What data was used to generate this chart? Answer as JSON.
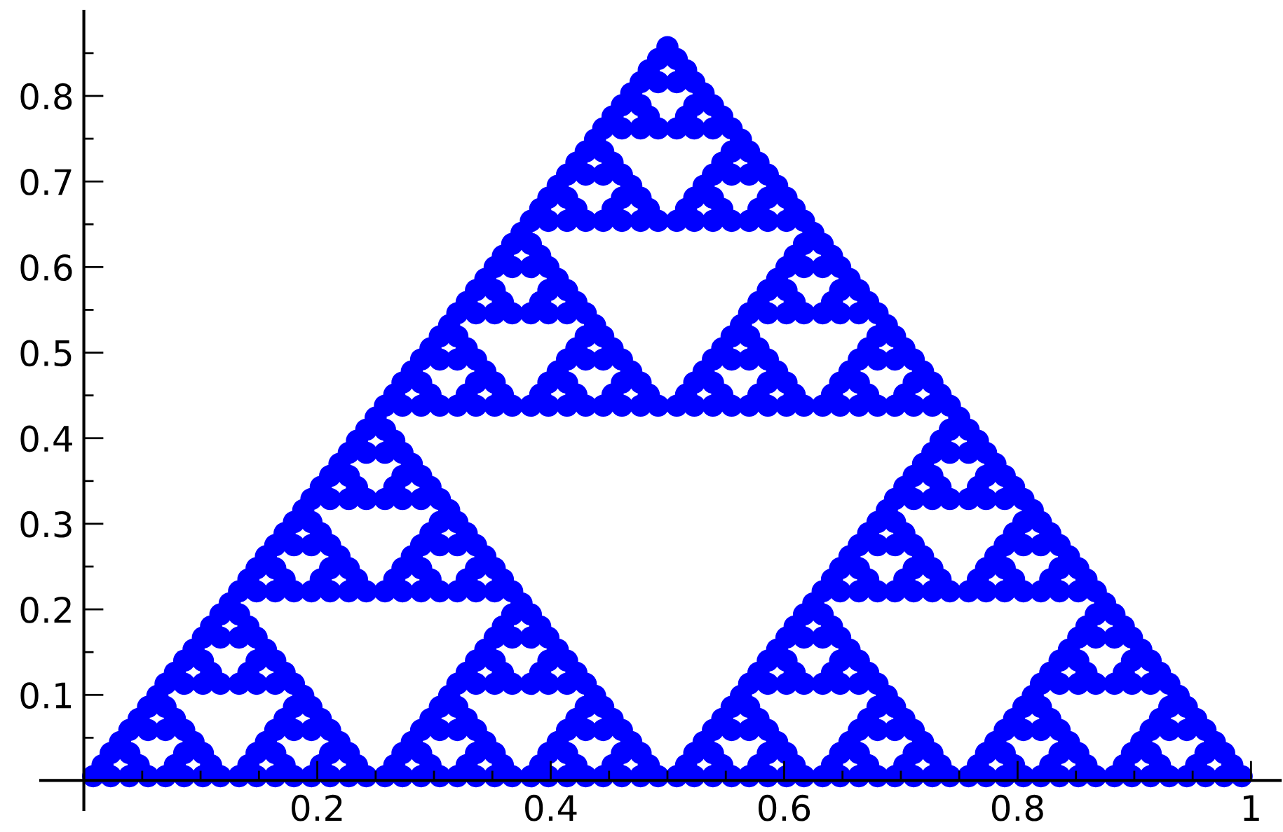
{
  "chart_data": {
    "type": "scatter",
    "color": "#0000ff",
    "marker": "circle",
    "x": [
      0.008,
      0.023,
      0.039,
      0.055,
      0.07,
      0.086,
      0.102,
      0.117,
      0.133,
      0.148,
      0.164,
      0.18,
      0.195,
      0.211,
      0.227,
      0.242,
      0.258,
      0.273,
      0.289,
      0.305,
      0.32,
      0.336,
      0.352,
      0.367,
      0.383,
      0.398,
      0.414,
      0.43,
      0.445,
      0.461,
      0.477,
      0.492,
      0.508,
      0.523,
      0.539,
      0.555,
      0.57,
      0.586,
      0.602,
      0.617,
      0.633,
      0.648,
      0.664,
      0.68,
      0.695,
      0.711,
      0.727,
      0.742,
      0.758,
      0.773,
      0.789,
      0.805,
      0.82,
      0.836,
      0.852,
      0.867,
      0.883,
      0.898,
      0.914,
      0.93,
      0.945,
      0.961,
      0.977,
      0.992,
      0.016,
      0.047,
      0.078,
      0.109,
      0.141,
      0.172,
      0.203,
      0.234,
      0.266,
      0.297,
      0.328,
      0.359,
      0.391,
      0.422,
      0.453,
      0.484,
      0.516,
      0.547,
      0.578,
      0.609,
      0.641,
      0.672,
      0.703,
      0.734,
      0.766,
      0.797,
      0.828,
      0.859,
      0.891,
      0.922,
      0.953,
      0.984,
      0.023,
      0.039,
      0.086,
      0.102,
      0.148,
      0.164,
      0.211,
      0.227,
      0.273,
      0.289,
      0.336,
      0.352,
      0.398,
      0.414,
      0.461,
      0.477,
      0.523,
      0.539,
      0.586,
      0.602,
      0.648,
      0.664,
      0.711,
      0.727,
      0.773,
      0.789,
      0.836,
      0.852,
      0.898,
      0.914,
      0.961,
      0.977,
      0.031,
      0.094,
      0.156,
      0.219,
      0.281,
      0.344,
      0.406,
      0.469,
      0.531,
      0.594,
      0.656,
      0.719,
      0.781,
      0.844,
      0.906,
      0.969,
      0.039,
      0.055,
      0.07,
      0.086,
      0.164,
      0.18,
      0.195,
      0.211,
      0.289,
      0.305,
      0.32,
      0.336,
      0.414,
      0.43,
      0.445,
      0.461,
      0.539,
      0.555,
      0.57,
      0.586,
      0.664,
      0.68,
      0.695,
      0.711,
      0.789,
      0.805,
      0.82,
      0.836,
      0.914,
      0.93,
      0.945,
      0.961,
      0.047,
      0.078,
      0.172,
      0.203,
      0.297,
      0.328,
      0.422,
      0.453,
      0.547,
      0.578,
      0.672,
      0.703,
      0.797,
      0.828,
      0.922,
      0.953,
      0.055,
      0.07,
      0.18,
      0.195,
      0.305,
      0.32,
      0.43,
      0.445,
      0.555,
      0.57,
      0.68,
      0.695,
      0.805,
      0.82,
      0.93,
      0.945,
      0.063,
      0.188,
      0.313,
      0.438,
      0.563,
      0.688,
      0.813,
      0.938,
      0.07,
      0.086,
      0.102,
      0.117,
      0.133,
      0.148,
      0.164,
      0.18,
      0.32,
      0.336,
      0.352,
      0.367,
      0.383,
      0.398,
      0.414,
      0.43,
      0.57,
      0.586,
      0.602,
      0.617,
      0.633,
      0.648,
      0.664,
      0.68,
      0.82,
      0.836,
      0.852,
      0.867,
      0.883,
      0.898,
      0.914,
      0.93,
      0.078,
      0.109,
      0.141,
      0.172,
      0.328,
      0.359,
      0.391,
      0.422,
      0.578,
      0.609,
      0.641,
      0.672,
      0.828,
      0.859,
      0.891,
      0.922,
      0.086,
      0.102,
      0.148,
      0.164,
      0.336,
      0.352,
      0.398,
      0.414,
      0.586,
      0.602,
      0.648,
      0.664,
      0.836,
      0.852,
      0.898,
      0.914,
      0.094,
      0.156,
      0.344,
      0.406,
      0.594,
      0.656,
      0.844,
      0.906,
      0.102,
      0.117,
      0.133,
      0.148,
      0.352,
      0.367,
      0.383,
      0.398,
      0.602,
      0.617,
      0.633,
      0.648,
      0.852,
      0.867,
      0.883,
      0.898,
      0.109,
      0.141,
      0.359,
      0.391,
      0.609,
      0.641,
      0.859,
      0.891,
      0.117,
      0.133,
      0.367,
      0.383,
      0.617,
      0.633,
      0.867,
      0.883,
      0.125,
      0.375,
      0.625,
      0.875,
      0.133,
      0.148,
      0.164,
      0.18,
      0.195,
      0.211,
      0.227,
      0.242,
      0.258,
      0.273,
      0.289,
      0.305,
      0.32,
      0.336,
      0.352,
      0.367,
      0.633,
      0.648,
      0.664,
      0.68,
      0.695,
      0.711,
      0.727,
      0.742,
      0.758,
      0.773,
      0.789,
      0.805,
      0.82,
      0.836,
      0.852,
      0.867,
      0.141,
      0.172,
      0.203,
      0.234,
      0.266,
      0.297,
      0.328,
      0.359,
      0.641,
      0.672,
      0.703,
      0.734,
      0.766,
      0.797,
      0.828,
      0.859,
      0.148,
      0.164,
      0.211,
      0.227,
      0.273,
      0.289,
      0.336,
      0.352,
      0.648,
      0.664,
      0.711,
      0.727,
      0.773,
      0.789,
      0.836,
      0.852,
      0.156,
      0.219,
      0.281,
      0.344,
      0.656,
      0.719,
      0.781,
      0.844,
      0.164,
      0.18,
      0.195,
      0.211,
      0.289,
      0.305,
      0.32,
      0.336,
      0.664,
      0.68,
      0.695,
      0.711,
      0.789,
      0.805,
      0.82,
      0.836,
      0.172,
      0.203,
      0.297,
      0.328,
      0.672,
      0.703,
      0.797,
      0.828,
      0.18,
      0.195,
      0.305,
      0.32,
      0.68,
      0.695,
      0.805,
      0.82,
      0.188,
      0.313,
      0.688,
      0.813,
      0.195,
      0.211,
      0.227,
      0.242,
      0.258,
      0.273,
      0.289,
      0.305,
      0.695,
      0.711,
      0.727,
      0.742,
      0.758,
      0.773,
      0.789,
      0.805,
      0.203,
      0.234,
      0.266,
      0.297,
      0.703,
      0.734,
      0.766,
      0.797,
      0.211,
      0.227,
      0.273,
      0.289,
      0.711,
      0.727,
      0.773,
      0.789,
      0.219,
      0.281,
      0.719,
      0.781,
      0.227,
      0.242,
      0.258,
      0.273,
      0.727,
      0.742,
      0.758,
      0.773,
      0.234,
      0.266,
      0.734,
      0.766,
      0.242,
      0.258,
      0.742,
      0.758,
      0.25,
      0.75,
      0.258,
      0.273,
      0.289,
      0.305,
      0.32,
      0.336,
      0.352,
      0.367,
      0.383,
      0.398,
      0.414,
      0.43,
      0.445,
      0.461,
      0.477,
      0.492,
      0.508,
      0.523,
      0.539,
      0.555,
      0.57,
      0.586,
      0.602,
      0.617,
      0.633,
      0.648,
      0.664,
      0.68,
      0.695,
      0.711,
      0.727,
      0.742,
      0.266,
      0.297,
      0.328,
      0.359,
      0.391,
      0.422,
      0.453,
      0.484,
      0.516,
      0.547,
      0.578,
      0.609,
      0.641,
      0.672,
      0.703,
      0.734,
      0.273,
      0.289,
      0.336,
      0.352,
      0.398,
      0.414,
      0.461,
      0.477,
      0.523,
      0.539,
      0.586,
      0.602,
      0.648,
      0.664,
      0.711,
      0.727,
      0.281,
      0.344,
      0.406,
      0.469,
      0.531,
      0.594,
      0.656,
      0.719,
      0.289,
      0.305,
      0.32,
      0.336,
      0.414,
      0.43,
      0.445,
      0.461,
      0.539,
      0.555,
      0.57,
      0.586,
      0.664,
      0.68,
      0.695,
      0.711,
      0.297,
      0.328,
      0.422,
      0.453,
      0.547,
      0.578,
      0.672,
      0.703,
      0.305,
      0.32,
      0.43,
      0.445,
      0.555,
      0.57,
      0.68,
      0.695,
      0.313,
      0.438,
      0.563,
      0.688,
      0.32,
      0.336,
      0.352,
      0.367,
      0.383,
      0.398,
      0.414,
      0.43,
      0.57,
      0.586,
      0.602,
      0.617,
      0.633,
      0.648,
      0.664,
      0.68,
      0.328,
      0.359,
      0.391,
      0.422,
      0.578,
      0.609,
      0.641,
      0.672,
      0.336,
      0.352,
      0.398,
      0.414,
      0.586,
      0.602,
      0.648,
      0.664,
      0.344,
      0.406,
      0.594,
      0.656,
      0.352,
      0.367,
      0.383,
      0.398,
      0.602,
      0.617,
      0.633,
      0.648,
      0.359,
      0.391,
      0.609,
      0.641,
      0.367,
      0.383,
      0.617,
      0.633,
      0.375,
      0.625,
      0.383,
      0.398,
      0.414,
      0.43,
      0.445,
      0.461,
      0.477,
      0.492,
      0.508,
      0.523,
      0.539,
      0.555,
      0.57,
      0.586,
      0.602,
      0.617,
      0.391,
      0.422,
      0.453,
      0.484,
      0.516,
      0.547,
      0.578,
      0.609,
      0.398,
      0.414,
      0.461,
      0.477,
      0.523,
      0.539,
      0.586,
      0.602,
      0.406,
      0.469,
      0.531,
      0.594,
      0.414,
      0.43,
      0.445,
      0.461,
      0.539,
      0.555,
      0.57,
      0.586,
      0.422,
      0.453,
      0.547,
      0.578,
      0.43,
      0.445,
      0.555,
      0.57,
      0.438,
      0.563,
      0.445,
      0.461,
      0.477,
      0.492,
      0.508,
      0.523,
      0.539,
      0.555,
      0.453,
      0.484,
      0.516,
      0.547,
      0.461,
      0.477,
      0.523,
      0.539,
      0.469,
      0.531,
      0.477,
      0.492,
      0.508,
      0.523,
      0.484,
      0.516,
      0.492,
      0.508,
      0.5
    ],
    "values": [
      0.005,
      0.005,
      0.005,
      0.005,
      0.005,
      0.005,
      0.005,
      0.005,
      0.005,
      0.005,
      0.005,
      0.005,
      0.005,
      0.005,
      0.005,
      0.005,
      0.005,
      0.005,
      0.005,
      0.005,
      0.005,
      0.005,
      0.005,
      0.005,
      0.005,
      0.005,
      0.005,
      0.005,
      0.005,
      0.005,
      0.005,
      0.005,
      0.005,
      0.005,
      0.005,
      0.005,
      0.005,
      0.005,
      0.005,
      0.005,
      0.005,
      0.005,
      0.005,
      0.005,
      0.005,
      0.005,
      0.005,
      0.005,
      0.005,
      0.005,
      0.005,
      0.005,
      0.005,
      0.005,
      0.005,
      0.005,
      0.005,
      0.005,
      0.005,
      0.005,
      0.005,
      0.005,
      0.005,
      0.005,
      0.018,
      0.018,
      0.018,
      0.018,
      0.018,
      0.018,
      0.018,
      0.018,
      0.018,
      0.018,
      0.018,
      0.018,
      0.018,
      0.018,
      0.018,
      0.018,
      0.018,
      0.018,
      0.018,
      0.018,
      0.018,
      0.018,
      0.018,
      0.018,
      0.018,
      0.018,
      0.018,
      0.018,
      0.018,
      0.018,
      0.018,
      0.018,
      0.032,
      0.032,
      0.032,
      0.032,
      0.032,
      0.032,
      0.032,
      0.032,
      0.032,
      0.032,
      0.032,
      0.032,
      0.032,
      0.032,
      0.032,
      0.032,
      0.032,
      0.032,
      0.032,
      0.032,
      0.032,
      0.032,
      0.032,
      0.032,
      0.032,
      0.032,
      0.032,
      0.032,
      0.032,
      0.032,
      0.032,
      0.032,
      0.045,
      0.045,
      0.045,
      0.045,
      0.045,
      0.045,
      0.045,
      0.045,
      0.045,
      0.045,
      0.045,
      0.045,
      0.045,
      0.045,
      0.045,
      0.045,
      0.059,
      0.059,
      0.059,
      0.059,
      0.059,
      0.059,
      0.059,
      0.059,
      0.059,
      0.059,
      0.059,
      0.059,
      0.059,
      0.059,
      0.059,
      0.059,
      0.059,
      0.059,
      0.059,
      0.059,
      0.059,
      0.059,
      0.059,
      0.059,
      0.059,
      0.059,
      0.059,
      0.059,
      0.059,
      0.059,
      0.059,
      0.059,
      0.072,
      0.072,
      0.072,
      0.072,
      0.072,
      0.072,
      0.072,
      0.072,
      0.072,
      0.072,
      0.072,
      0.072,
      0.072,
      0.072,
      0.072,
      0.072,
      0.086,
      0.086,
      0.086,
      0.086,
      0.086,
      0.086,
      0.086,
      0.086,
      0.086,
      0.086,
      0.086,
      0.086,
      0.086,
      0.086,
      0.086,
      0.086,
      0.099,
      0.099,
      0.099,
      0.099,
      0.099,
      0.099,
      0.099,
      0.099,
      0.113,
      0.113,
      0.113,
      0.113,
      0.113,
      0.113,
      0.113,
      0.113,
      0.113,
      0.113,
      0.113,
      0.113,
      0.113,
      0.113,
      0.113,
      0.113,
      0.113,
      0.113,
      0.113,
      0.113,
      0.113,
      0.113,
      0.113,
      0.113,
      0.113,
      0.113,
      0.113,
      0.113,
      0.113,
      0.113,
      0.113,
      0.113,
      0.126,
      0.126,
      0.126,
      0.126,
      0.126,
      0.126,
      0.126,
      0.126,
      0.126,
      0.126,
      0.126,
      0.126,
      0.126,
      0.126,
      0.126,
      0.126,
      0.14,
      0.14,
      0.14,
      0.14,
      0.14,
      0.14,
      0.14,
      0.14,
      0.14,
      0.14,
      0.14,
      0.14,
      0.14,
      0.14,
      0.14,
      0.14,
      0.153,
      0.153,
      0.153,
      0.153,
      0.153,
      0.153,
      0.153,
      0.153,
      0.167,
      0.167,
      0.167,
      0.167,
      0.167,
      0.167,
      0.167,
      0.167,
      0.167,
      0.167,
      0.167,
      0.167,
      0.167,
      0.167,
      0.167,
      0.167,
      0.18,
      0.18,
      0.18,
      0.18,
      0.18,
      0.18,
      0.18,
      0.18,
      0.194,
      0.194,
      0.194,
      0.194,
      0.194,
      0.194,
      0.194,
      0.194,
      0.207,
      0.207,
      0.207,
      0.207,
      0.221,
      0.221,
      0.221,
      0.221,
      0.221,
      0.221,
      0.221,
      0.221,
      0.221,
      0.221,
      0.221,
      0.221,
      0.221,
      0.221,
      0.221,
      0.221,
      0.221,
      0.221,
      0.221,
      0.221,
      0.221,
      0.221,
      0.221,
      0.221,
      0.221,
      0.221,
      0.221,
      0.221,
      0.221,
      0.221,
      0.221,
      0.221,
      0.235,
      0.235,
      0.235,
      0.235,
      0.235,
      0.235,
      0.235,
      0.235,
      0.235,
      0.235,
      0.235,
      0.235,
      0.235,
      0.235,
      0.235,
      0.235,
      0.248,
      0.248,
      0.248,
      0.248,
      0.248,
      0.248,
      0.248,
      0.248,
      0.248,
      0.248,
      0.248,
      0.248,
      0.248,
      0.248,
      0.248,
      0.248,
      0.262,
      0.262,
      0.262,
      0.262,
      0.262,
      0.262,
      0.262,
      0.262,
      0.275,
      0.275,
      0.275,
      0.275,
      0.275,
      0.275,
      0.275,
      0.275,
      0.275,
      0.275,
      0.275,
      0.275,
      0.275,
      0.275,
      0.275,
      0.275,
      0.289,
      0.289,
      0.289,
      0.289,
      0.289,
      0.289,
      0.289,
      0.289,
      0.302,
      0.302,
      0.302,
      0.302,
      0.302,
      0.302,
      0.302,
      0.302,
      0.316,
      0.316,
      0.316,
      0.316,
      0.329,
      0.329,
      0.329,
      0.329,
      0.329,
      0.329,
      0.329,
      0.329,
      0.329,
      0.329,
      0.329,
      0.329,
      0.329,
      0.329,
      0.329,
      0.329,
      0.343,
      0.343,
      0.343,
      0.343,
      0.343,
      0.343,
      0.343,
      0.343,
      0.356,
      0.356,
      0.356,
      0.356,
      0.356,
      0.356,
      0.356,
      0.356,
      0.37,
      0.37,
      0.37,
      0.37,
      0.383,
      0.383,
      0.383,
      0.383,
      0.383,
      0.383,
      0.383,
      0.383,
      0.397,
      0.397,
      0.397,
      0.397,
      0.41,
      0.41,
      0.41,
      0.41,
      0.424,
      0.424,
      0.438,
      0.438,
      0.438,
      0.438,
      0.438,
      0.438,
      0.438,
      0.438,
      0.438,
      0.438,
      0.438,
      0.438,
      0.438,
      0.438,
      0.438,
      0.438,
      0.438,
      0.438,
      0.438,
      0.438,
      0.438,
      0.438,
      0.438,
      0.438,
      0.438,
      0.438,
      0.438,
      0.438,
      0.438,
      0.438,
      0.438,
      0.438,
      0.451,
      0.451,
      0.451,
      0.451,
      0.451,
      0.451,
      0.451,
      0.451,
      0.451,
      0.451,
      0.451,
      0.451,
      0.451,
      0.451,
      0.451,
      0.451,
      0.465,
      0.465,
      0.465,
      0.465,
      0.465,
      0.465,
      0.465,
      0.465,
      0.465,
      0.465,
      0.465,
      0.465,
      0.465,
      0.465,
      0.465,
      0.465,
      0.478,
      0.478,
      0.478,
      0.478,
      0.478,
      0.478,
      0.478,
      0.478,
      0.492,
      0.492,
      0.492,
      0.492,
      0.492,
      0.492,
      0.492,
      0.492,
      0.492,
      0.492,
      0.492,
      0.492,
      0.492,
      0.492,
      0.492,
      0.492,
      0.505,
      0.505,
      0.505,
      0.505,
      0.505,
      0.505,
      0.505,
      0.505,
      0.519,
      0.519,
      0.519,
      0.519,
      0.519,
      0.519,
      0.519,
      0.519,
      0.532,
      0.532,
      0.532,
      0.532,
      0.546,
      0.546,
      0.546,
      0.546,
      0.546,
      0.546,
      0.546,
      0.546,
      0.546,
      0.546,
      0.546,
      0.546,
      0.546,
      0.546,
      0.546,
      0.546,
      0.559,
      0.559,
      0.559,
      0.559,
      0.559,
      0.559,
      0.559,
      0.559,
      0.573,
      0.573,
      0.573,
      0.573,
      0.573,
      0.573,
      0.573,
      0.573,
      0.586,
      0.586,
      0.586,
      0.586,
      0.6,
      0.6,
      0.6,
      0.6,
      0.6,
      0.6,
      0.6,
      0.6,
      0.613,
      0.613,
      0.613,
      0.613,
      0.627,
      0.627,
      0.627,
      0.627,
      0.64,
      0.64,
      0.654,
      0.654,
      0.654,
      0.654,
      0.654,
      0.654,
      0.654,
      0.654,
      0.654,
      0.654,
      0.654,
      0.654,
      0.654,
      0.654,
      0.654,
      0.654,
      0.668,
      0.668,
      0.668,
      0.668,
      0.668,
      0.668,
      0.668,
      0.668,
      0.681,
      0.681,
      0.681,
      0.681,
      0.681,
      0.681,
      0.681,
      0.681,
      0.695,
      0.695,
      0.695,
      0.695,
      0.708,
      0.708,
      0.708,
      0.708,
      0.708,
      0.708,
      0.708,
      0.708,
      0.722,
      0.722,
      0.722,
      0.722,
      0.735,
      0.735,
      0.735,
      0.735,
      0.749,
      0.749,
      0.762,
      0.762,
      0.762,
      0.762,
      0.762,
      0.762,
      0.762,
      0.762,
      0.776,
      0.776,
      0.776,
      0.776,
      0.789,
      0.789,
      0.789,
      0.789,
      0.803,
      0.803,
      0.816,
      0.816,
      0.816,
      0.816,
      0.83,
      0.83,
      0.843,
      0.843,
      0.857
    ],
    "xlim": [
      -0.037,
      1.025
    ],
    "ylim": [
      -0.034,
      0.899
    ],
    "xticks": [
      {
        "value": 0.05,
        "label": null
      },
      {
        "value": 0.1,
        "label": null
      },
      {
        "value": 0.15,
        "label": null
      },
      0.2,
      {
        "value": 0.25,
        "label": null
      },
      {
        "value": 0.3,
        "label": null
      },
      {
        "value": 0.35,
        "label": null
      },
      0.4,
      {
        "value": 0.45,
        "label": null
      },
      {
        "value": 0.5,
        "label": null
      },
      {
        "value": 0.55,
        "label": null
      },
      0.6,
      {
        "value": 0.65,
        "label": null
      },
      {
        "value": 0.7,
        "label": null
      },
      {
        "value": 0.75,
        "label": null
      },
      0.8,
      {
        "value": 0.85,
        "label": null
      },
      {
        "value": 0.9,
        "label": null
      },
      {
        "value": 0.95,
        "label": null
      },
      1
    ],
    "yticks": [
      {
        "value": 0.05,
        "label": null
      },
      0.1,
      {
        "value": 0.15,
        "label": null
      },
      0.2,
      {
        "value": 0.25,
        "label": null
      },
      0.3,
      {
        "value": 0.35,
        "label": null
      },
      0.4,
      {
        "value": 0.45,
        "label": null
      },
      0.5,
      {
        "value": 0.55,
        "label": null
      },
      0.6,
      {
        "value": 0.65,
        "label": null
      },
      0.7,
      {
        "value": 0.75,
        "label": null
      },
      0.8,
      {
        "value": 0.85,
        "label": null
      }
    ]
  }
}
